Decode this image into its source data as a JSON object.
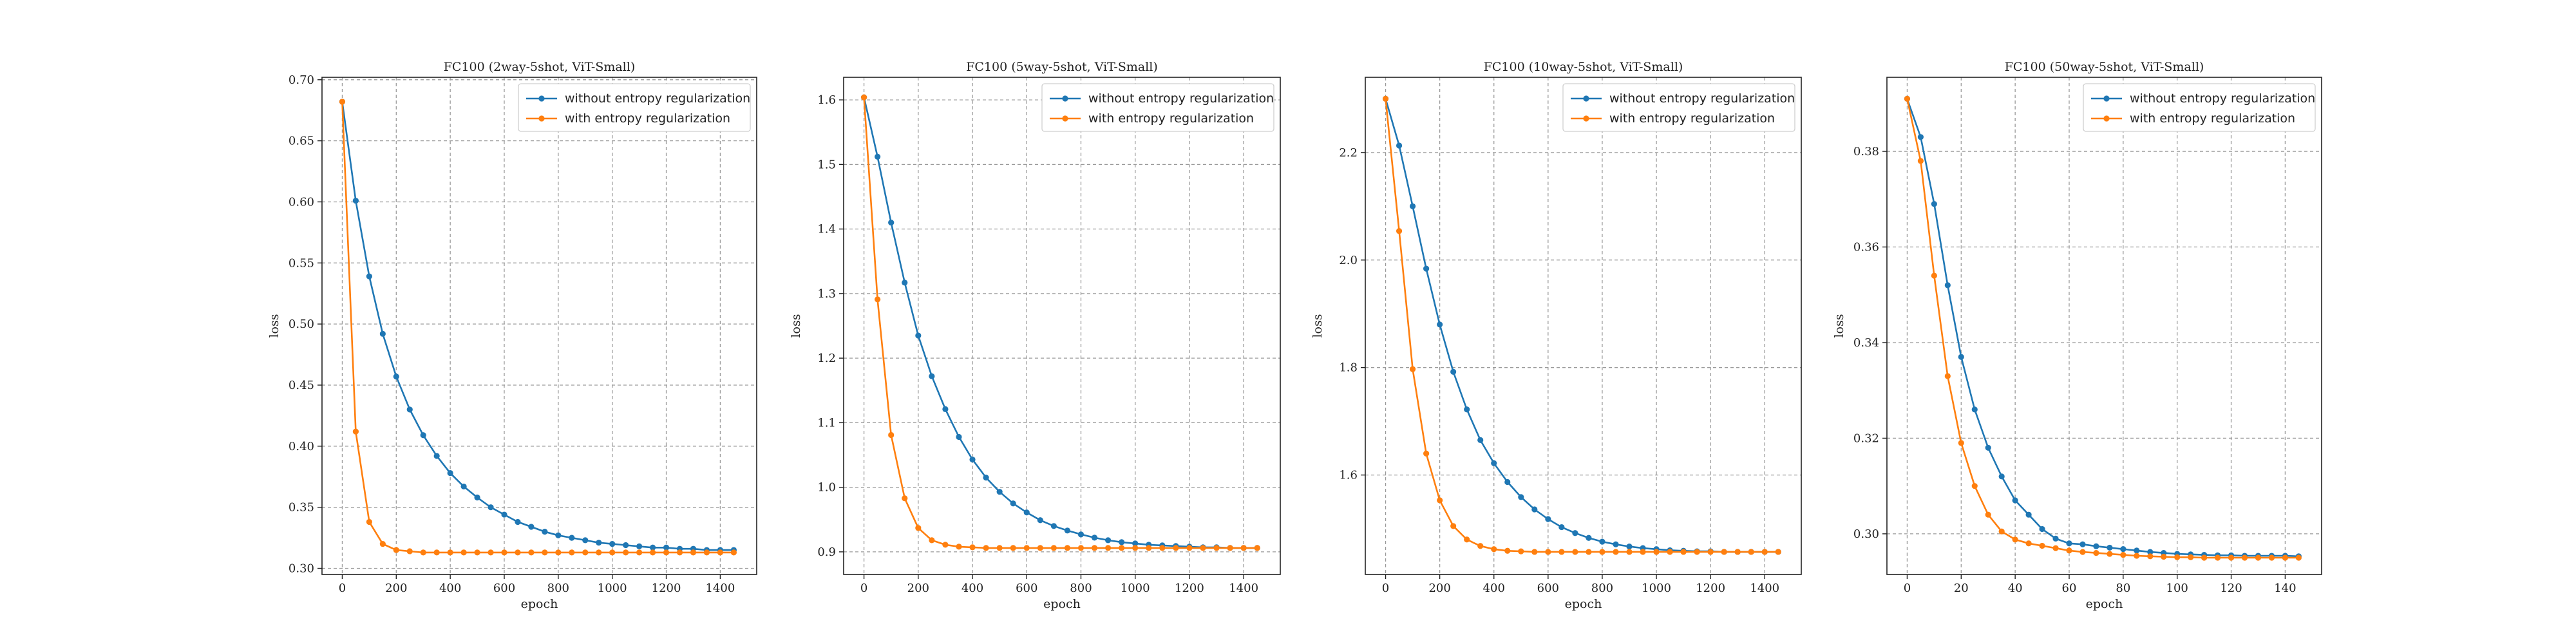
{
  "chart_data": [
    {
      "type": "line",
      "title": "FC100 (2way-5shot, ViT-Small)",
      "xlabel": "epoch",
      "ylabel": "loss",
      "xlim": [
        -75,
        1535
      ],
      "ylim": [
        0.295,
        0.702
      ],
      "xticks": [
        0,
        200,
        400,
        600,
        800,
        1000,
        1200,
        1400
      ],
      "yticks": [
        0.3,
        0.35,
        0.4,
        0.45,
        0.5,
        0.55,
        0.6,
        0.65,
        0.7
      ],
      "ytick_labels": [
        "0.30",
        "0.35",
        "0.40",
        "0.45",
        "0.50",
        "0.55",
        "0.60",
        "0.65",
        "0.70"
      ],
      "grid": true,
      "legend_position": "upper right",
      "x": [
        0,
        50,
        100,
        150,
        200,
        250,
        300,
        350,
        400,
        450,
        500,
        550,
        600,
        650,
        700,
        750,
        800,
        850,
        900,
        950,
        1000,
        1050,
        1100,
        1150,
        1200,
        1250,
        1300,
        1350,
        1400,
        1450
      ],
      "series": [
        {
          "name": "without entropy regularization",
          "color": "#1f77b4",
          "values": [
            0.682,
            0.601,
            0.539,
            0.492,
            0.457,
            0.43,
            0.409,
            0.392,
            0.378,
            0.367,
            0.358,
            0.35,
            0.344,
            0.338,
            0.334,
            0.33,
            0.327,
            0.325,
            0.323,
            0.321,
            0.32,
            0.319,
            0.318,
            0.317,
            0.317,
            0.316,
            0.316,
            0.315,
            0.315,
            0.315
          ]
        },
        {
          "name": "with entropy regularization",
          "color": "#ff7f0e",
          "values": [
            0.682,
            0.412,
            0.338,
            0.32,
            0.315,
            0.314,
            0.313,
            0.313,
            0.313,
            0.313,
            0.313,
            0.313,
            0.313,
            0.313,
            0.313,
            0.313,
            0.313,
            0.313,
            0.313,
            0.313,
            0.313,
            0.313,
            0.313,
            0.313,
            0.313,
            0.313,
            0.313,
            0.313,
            0.313,
            0.313
          ]
        }
      ]
    },
    {
      "type": "line",
      "title": "FC100 (5way-5shot, ViT-Small)",
      "xlabel": "epoch",
      "ylabel": "loss",
      "xlim": [
        -75,
        1535
      ],
      "ylim": [
        0.865,
        1.635
      ],
      "xticks": [
        0,
        200,
        400,
        600,
        800,
        1000,
        1200,
        1400
      ],
      "yticks": [
        0.9,
        1.0,
        1.1,
        1.2,
        1.3,
        1.4,
        1.5,
        1.6
      ],
      "ytick_labels": [
        "0.9",
        "1.0",
        "1.1",
        "1.2",
        "1.3",
        "1.4",
        "1.5",
        "1.6"
      ],
      "grid": true,
      "legend_position": "upper right",
      "x": [
        0,
        50,
        100,
        150,
        200,
        250,
        300,
        350,
        400,
        450,
        500,
        550,
        600,
        650,
        700,
        750,
        800,
        850,
        900,
        950,
        1000,
        1050,
        1100,
        1150,
        1200,
        1250,
        1300,
        1350,
        1400,
        1450
      ],
      "series": [
        {
          "name": "without entropy regularization",
          "color": "#1f77b4",
          "values": [
            1.604,
            1.512,
            1.41,
            1.317,
            1.235,
            1.172,
            1.121,
            1.078,
            1.043,
            1.015,
            0.993,
            0.975,
            0.961,
            0.949,
            0.94,
            0.933,
            0.927,
            0.922,
            0.918,
            0.915,
            0.913,
            0.911,
            0.91,
            0.909,
            0.908,
            0.907,
            0.907,
            0.906,
            0.906,
            0.906
          ]
        },
        {
          "name": "with entropy regularization",
          "color": "#ff7f0e",
          "values": [
            1.604,
            1.291,
            1.081,
            0.983,
            0.937,
            0.918,
            0.911,
            0.908,
            0.907,
            0.906,
            0.906,
            0.906,
            0.906,
            0.906,
            0.906,
            0.906,
            0.906,
            0.906,
            0.906,
            0.906,
            0.906,
            0.906,
            0.906,
            0.906,
            0.906,
            0.906,
            0.906,
            0.906,
            0.906,
            0.906
          ]
        }
      ]
    },
    {
      "type": "line",
      "title": "FC100 (10way-5shot, ViT-Small)",
      "xlabel": "epoch",
      "ylabel": "loss",
      "xlim": [
        -75,
        1535
      ],
      "ylim": [
        1.415,
        2.34
      ],
      "xticks": [
        0,
        200,
        400,
        600,
        800,
        1000,
        1200,
        1400
      ],
      "yticks": [
        1.6,
        1.8,
        2.0,
        2.2
      ],
      "ytick_labels": [
        "1.6",
        "1.8",
        "2.0",
        "2.2"
      ],
      "grid": true,
      "legend_position": "upper right",
      "x": [
        0,
        50,
        100,
        150,
        200,
        250,
        300,
        350,
        400,
        450,
        500,
        550,
        600,
        650,
        700,
        750,
        800,
        850,
        900,
        950,
        1000,
        1050,
        1100,
        1150,
        1200,
        1250,
        1300,
        1350,
        1400,
        1450
      ],
      "series": [
        {
          "name": "without entropy regularization",
          "color": "#1f77b4",
          "values": [
            2.3,
            2.213,
            2.1,
            1.984,
            1.88,
            1.792,
            1.722,
            1.665,
            1.622,
            1.587,
            1.559,
            1.536,
            1.518,
            1.503,
            1.492,
            1.483,
            1.476,
            1.471,
            1.467,
            1.464,
            1.462,
            1.46,
            1.459,
            1.458,
            1.458,
            1.457,
            1.457,
            1.457,
            1.457,
            1.457
          ]
        },
        {
          "name": "with entropy regularization",
          "color": "#ff7f0e",
          "values": [
            2.3,
            2.054,
            1.797,
            1.64,
            1.553,
            1.505,
            1.48,
            1.468,
            1.462,
            1.459,
            1.458,
            1.457,
            1.457,
            1.457,
            1.457,
            1.457,
            1.457,
            1.457,
            1.457,
            1.457,
            1.457,
            1.457,
            1.457,
            1.457,
            1.457,
            1.457,
            1.457,
            1.457,
            1.457,
            1.457
          ]
        }
      ]
    },
    {
      "type": "line",
      "title": "FC100 (50way-5shot, ViT-Small)",
      "xlabel": "epoch",
      "ylabel": "loss",
      "xlim": [
        -7.5,
        153.5
      ],
      "ylim": [
        0.2915,
        0.3955
      ],
      "xticks": [
        0,
        20,
        40,
        60,
        80,
        100,
        120,
        140
      ],
      "yticks": [
        0.3,
        0.32,
        0.34,
        0.36,
        0.38
      ],
      "ytick_labels": [
        "0.30",
        "0.32",
        "0.34",
        "0.36",
        "0.38"
      ],
      "grid": true,
      "legend_position": "upper right",
      "x": [
        0,
        5,
        10,
        15,
        20,
        25,
        30,
        35,
        40,
        45,
        50,
        55,
        60,
        65,
        70,
        75,
        80,
        85,
        90,
        95,
        100,
        105,
        110,
        115,
        120,
        125,
        130,
        135,
        140,
        145
      ],
      "series": [
        {
          "name": "without entropy regularization",
          "color": "#1f77b4",
          "values": [
            0.391,
            0.383,
            0.369,
            0.352,
            0.337,
            0.326,
            0.318,
            0.312,
            0.307,
            0.304,
            0.301,
            0.299,
            0.298,
            0.2978,
            0.2974,
            0.2971,
            0.2968,
            0.2965,
            0.2962,
            0.296,
            0.2958,
            0.2957,
            0.2956,
            0.2955,
            0.2955,
            0.2954,
            0.2954,
            0.2954,
            0.2954,
            0.2953
          ]
        },
        {
          "name": "with entropy regularization",
          "color": "#ff7f0e",
          "values": [
            0.391,
            0.378,
            0.354,
            0.333,
            0.319,
            0.31,
            0.304,
            0.3005,
            0.2988,
            0.298,
            0.2975,
            0.297,
            0.2965,
            0.2962,
            0.296,
            0.2958,
            0.2956,
            0.2954,
            0.2953,
            0.2952,
            0.2951,
            0.2951,
            0.295,
            0.295,
            0.295,
            0.295,
            0.295,
            0.295,
            0.295,
            0.295
          ]
        }
      ]
    }
  ]
}
